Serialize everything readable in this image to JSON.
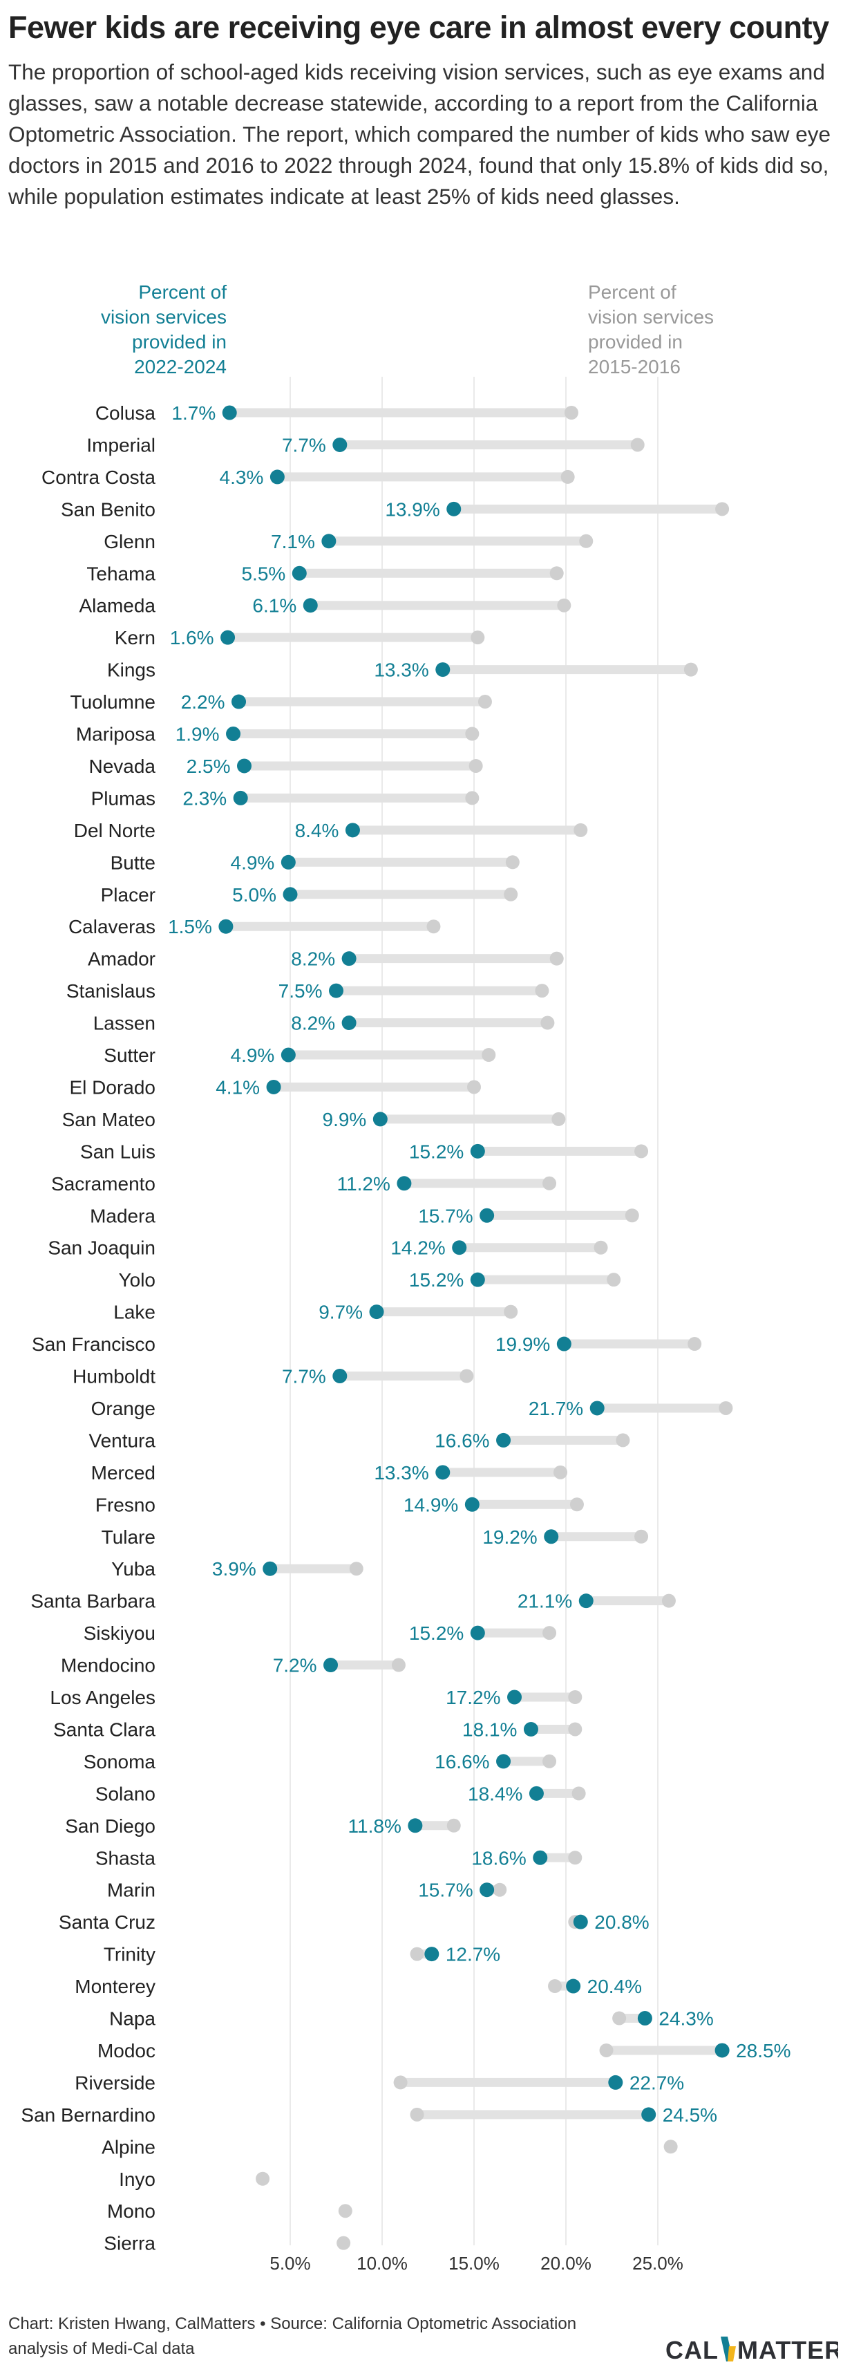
{
  "header": {
    "title": "Fewer kids are receiving eye care in almost every county",
    "subtitle": "The proportion of school-aged kids receiving vision services, such as eye exams and glasses, saw a notable decrease statewide, according to a report from the California Optometric Association. The report, which compared the number of kids who saw eye doctors in 2015 and 2016 to 2022 through 2024, found that only 15.8% of kids did so, while population estimates indicate at least 25% of kids need glasses."
  },
  "chart_data": {
    "type": "dot",
    "legend": {
      "current": [
        "Percent of",
        "vision services",
        "provided in",
        "2022-2024"
      ],
      "previous": [
        "Percent of",
        "vision services",
        "provided in",
        "2015-2016"
      ]
    },
    "xlim": [
      0,
      30
    ],
    "xticks": [
      {
        "value": 5,
        "label": "5.0%"
      },
      {
        "value": 10,
        "label": "10.0%"
      },
      {
        "value": 15,
        "label": "15.0%"
      },
      {
        "value": 20,
        "label": "20.0%"
      },
      {
        "value": 25,
        "label": "25.0%"
      }
    ],
    "grid": true,
    "colors": {
      "current": "#127f94",
      "previous": "#cfcfcf",
      "range": "#e2e2e2",
      "grid": "#e4e4e4"
    },
    "rows": [
      {
        "county": "Colusa",
        "v2015": 20.3,
        "v2022": 1.7,
        "label": "1.7%"
      },
      {
        "county": "Imperial",
        "v2015": 23.9,
        "v2022": 7.7,
        "label": "7.7%"
      },
      {
        "county": "Contra Costa",
        "v2015": 20.1,
        "v2022": 4.3,
        "label": "4.3%"
      },
      {
        "county": "San Benito",
        "v2015": 28.5,
        "v2022": 13.9,
        "label": "13.9%"
      },
      {
        "county": "Glenn",
        "v2015": 21.1,
        "v2022": 7.1,
        "label": "7.1%"
      },
      {
        "county": "Tehama",
        "v2015": 19.5,
        "v2022": 5.5,
        "label": "5.5%"
      },
      {
        "county": "Alameda",
        "v2015": 19.9,
        "v2022": 6.1,
        "label": "6.1%"
      },
      {
        "county": "Kern",
        "v2015": 15.2,
        "v2022": 1.6,
        "label": "1.6%"
      },
      {
        "county": "Kings",
        "v2015": 26.8,
        "v2022": 13.3,
        "label": "13.3%"
      },
      {
        "county": "Tuolumne",
        "v2015": 15.6,
        "v2022": 2.2,
        "label": "2.2%"
      },
      {
        "county": "Mariposa",
        "v2015": 14.9,
        "v2022": 1.9,
        "label": "1.9%"
      },
      {
        "county": "Nevada",
        "v2015": 15.1,
        "v2022": 2.5,
        "label": "2.5%"
      },
      {
        "county": "Plumas",
        "v2015": 14.9,
        "v2022": 2.3,
        "label": "2.3%"
      },
      {
        "county": "Del Norte",
        "v2015": 20.8,
        "v2022": 8.4,
        "label": "8.4%"
      },
      {
        "county": "Butte",
        "v2015": 17.1,
        "v2022": 4.9,
        "label": "4.9%"
      },
      {
        "county": "Placer",
        "v2015": 17.0,
        "v2022": 5.0,
        "label": "5.0%"
      },
      {
        "county": "Calaveras",
        "v2015": 12.8,
        "v2022": 1.5,
        "label": "1.5%"
      },
      {
        "county": "Amador",
        "v2015": 19.5,
        "v2022": 8.2,
        "label": "8.2%"
      },
      {
        "county": "Stanislaus",
        "v2015": 18.7,
        "v2022": 7.5,
        "label": "7.5%"
      },
      {
        "county": "Lassen",
        "v2015": 19.0,
        "v2022": 8.2,
        "label": "8.2%"
      },
      {
        "county": "Sutter",
        "v2015": 15.8,
        "v2022": 4.9,
        "label": "4.9%"
      },
      {
        "county": "El Dorado",
        "v2015": 15.0,
        "v2022": 4.1,
        "label": "4.1%"
      },
      {
        "county": "San Mateo",
        "v2015": 19.6,
        "v2022": 9.9,
        "label": "9.9%"
      },
      {
        "county": "San Luis",
        "v2015": 24.1,
        "v2022": 15.2,
        "label": "15.2%"
      },
      {
        "county": "Sacramento",
        "v2015": 19.1,
        "v2022": 11.2,
        "label": "11.2%"
      },
      {
        "county": "Madera",
        "v2015": 23.6,
        "v2022": 15.7,
        "label": "15.7%"
      },
      {
        "county": "San Joaquin",
        "v2015": 21.9,
        "v2022": 14.2,
        "label": "14.2%"
      },
      {
        "county": "Yolo",
        "v2015": 22.6,
        "v2022": 15.2,
        "label": "15.2%"
      },
      {
        "county": "Lake",
        "v2015": 17.0,
        "v2022": 9.7,
        "label": "9.7%"
      },
      {
        "county": "San Francisco",
        "v2015": 27.0,
        "v2022": 19.9,
        "label": "19.9%"
      },
      {
        "county": "Humboldt",
        "v2015": 14.6,
        "v2022": 7.7,
        "label": "7.7%"
      },
      {
        "county": "Orange",
        "v2015": 28.7,
        "v2022": 21.7,
        "label": "21.7%"
      },
      {
        "county": "Ventura",
        "v2015": 23.1,
        "v2022": 16.6,
        "label": "16.6%"
      },
      {
        "county": "Merced",
        "v2015": 19.7,
        "v2022": 13.3,
        "label": "13.3%"
      },
      {
        "county": "Fresno",
        "v2015": 20.6,
        "v2022": 14.9,
        "label": "14.9%"
      },
      {
        "county": "Tulare",
        "v2015": 24.1,
        "v2022": 19.2,
        "label": "19.2%"
      },
      {
        "county": "Yuba",
        "v2015": 8.6,
        "v2022": 3.9,
        "label": "3.9%"
      },
      {
        "county": "Santa Barbara",
        "v2015": 25.6,
        "v2022": 21.1,
        "label": "21.1%"
      },
      {
        "county": "Siskiyou",
        "v2015": 19.1,
        "v2022": 15.2,
        "label": "15.2%"
      },
      {
        "county": "Mendocino",
        "v2015": 10.9,
        "v2022": 7.2,
        "label": "7.2%"
      },
      {
        "county": "Los Angeles",
        "v2015": 20.5,
        "v2022": 17.2,
        "label": "17.2%"
      },
      {
        "county": "Santa Clara",
        "v2015": 20.5,
        "v2022": 18.1,
        "label": "18.1%"
      },
      {
        "county": "Sonoma",
        "v2015": 19.1,
        "v2022": 16.6,
        "label": "16.6%"
      },
      {
        "county": "Solano",
        "v2015": 20.7,
        "v2022": 18.4,
        "label": "18.4%"
      },
      {
        "county": "San Diego",
        "v2015": 13.9,
        "v2022": 11.8,
        "label": "11.8%"
      },
      {
        "county": "Shasta",
        "v2015": 20.5,
        "v2022": 18.6,
        "label": "18.6%"
      },
      {
        "county": "Marin",
        "v2015": 16.4,
        "v2022": 15.7,
        "label": "15.7%"
      },
      {
        "county": "Santa Cruz",
        "v2015": 20.5,
        "v2022": 20.8,
        "label": "20.8%"
      },
      {
        "county": "Trinity",
        "v2015": 11.9,
        "v2022": 12.7,
        "label": "12.7%"
      },
      {
        "county": "Monterey",
        "v2015": 19.4,
        "v2022": 20.4,
        "label": "20.4%"
      },
      {
        "county": "Napa",
        "v2015": 22.9,
        "v2022": 24.3,
        "label": "24.3%"
      },
      {
        "county": "Modoc",
        "v2015": 22.2,
        "v2022": 28.5,
        "label": "28.5%"
      },
      {
        "county": "Riverside",
        "v2015": 11.0,
        "v2022": 22.7,
        "label": "22.7%"
      },
      {
        "county": "San Bernardino",
        "v2015": 11.9,
        "v2022": 24.5,
        "label": "24.5%"
      },
      {
        "county": "Alpine",
        "v2015": 25.7,
        "v2022": null,
        "label": ""
      },
      {
        "county": "Inyo",
        "v2015": 3.5,
        "v2022": null,
        "label": ""
      },
      {
        "county": "Mono",
        "v2015": 8.0,
        "v2022": null,
        "label": ""
      },
      {
        "county": "Sierra",
        "v2015": 7.9,
        "v2022": null,
        "label": ""
      }
    ]
  },
  "footer": {
    "credit_line1": "Chart: Kristen Hwang, CalMatters • Source: California Optometric Association",
    "credit_line2": "analysis of Medi-Cal data"
  },
  "logo": {
    "part1": "CAL",
    "part2": "MATTERS",
    "colors": {
      "text": "#2e3035",
      "teal": "#127f94",
      "gold": "#f2b51d"
    }
  }
}
